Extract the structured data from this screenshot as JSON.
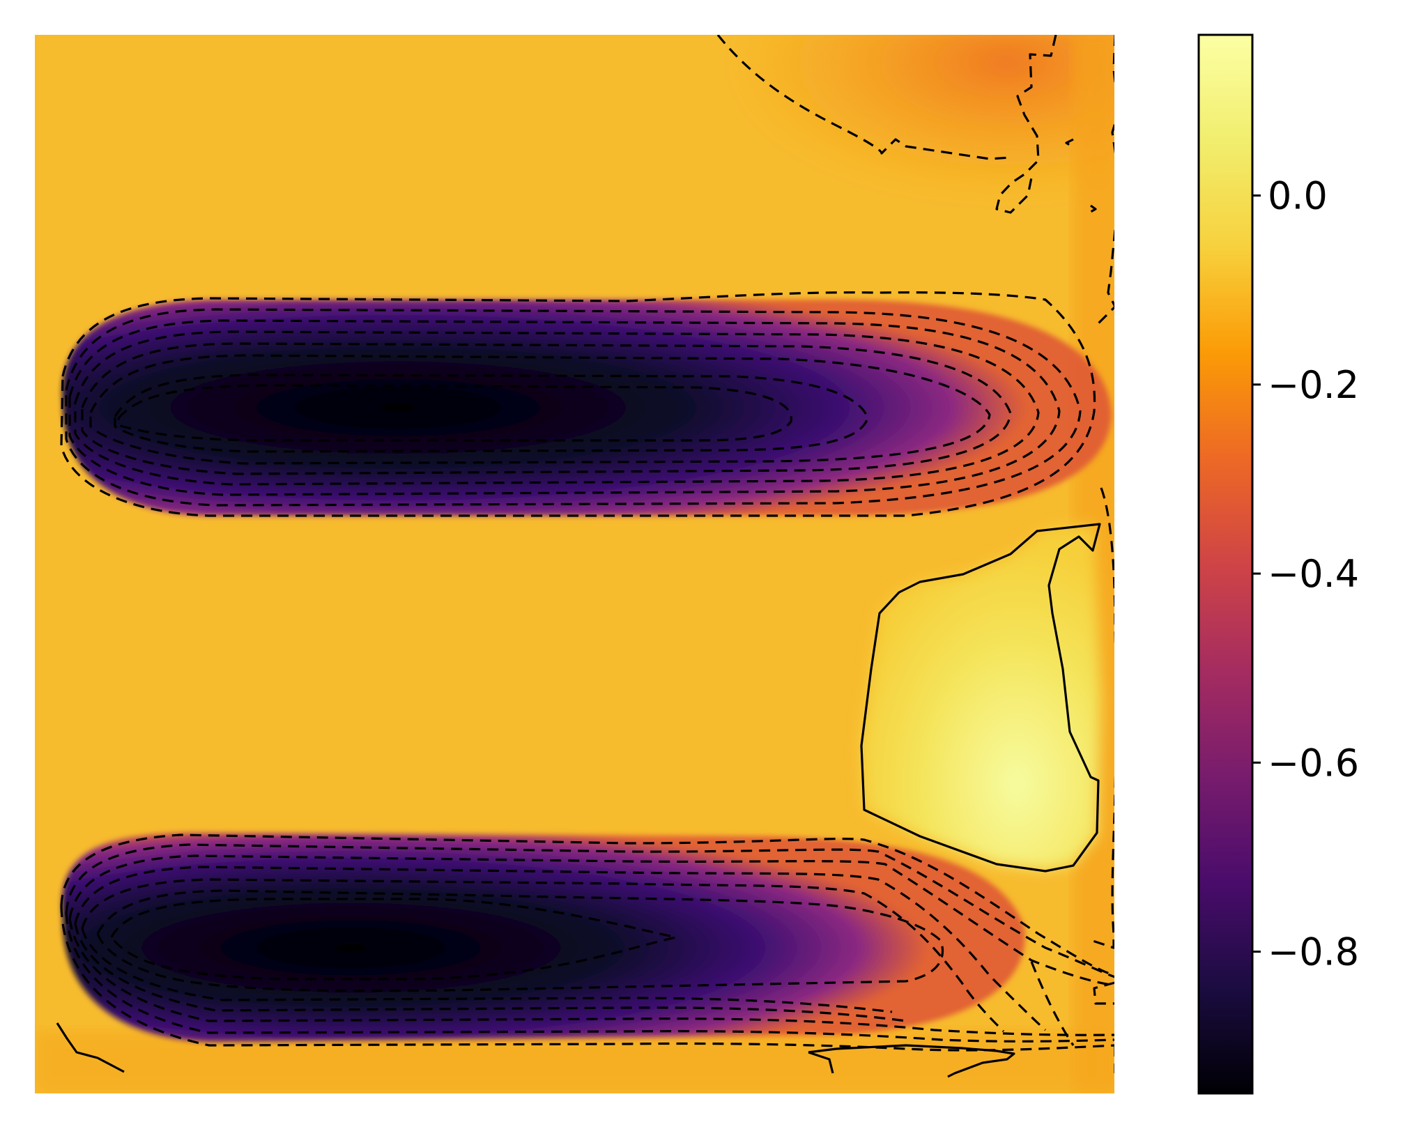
{
  "chart_data": {
    "type": "heatmap",
    "title": "",
    "xlabel": "",
    "ylabel": "",
    "axes_visible": false,
    "colormap": "inferno",
    "colorbar": {
      "vmin": -0.95,
      "vmax": 0.17,
      "ticks": [
        0.0,
        -0.2,
        -0.4,
        -0.6,
        -0.8
      ],
      "tick_labels": [
        "0.0",
        "−0.2",
        "−0.4",
        "−0.6",
        "−0.8"
      ]
    },
    "field_features": [
      {
        "name": "upper negative band",
        "min_value": -0.95
      },
      {
        "name": "lower negative band",
        "min_value": -0.95
      },
      {
        "name": "positive patch right",
        "max_value": 0.15
      },
      {
        "name": "background",
        "value": 0.02
      },
      {
        "name": "top-right orange area",
        "value": -0.15
      }
    ],
    "contours": {
      "negative_style": "dashed",
      "positive_style": "solid",
      "interval": 0.1
    }
  }
}
